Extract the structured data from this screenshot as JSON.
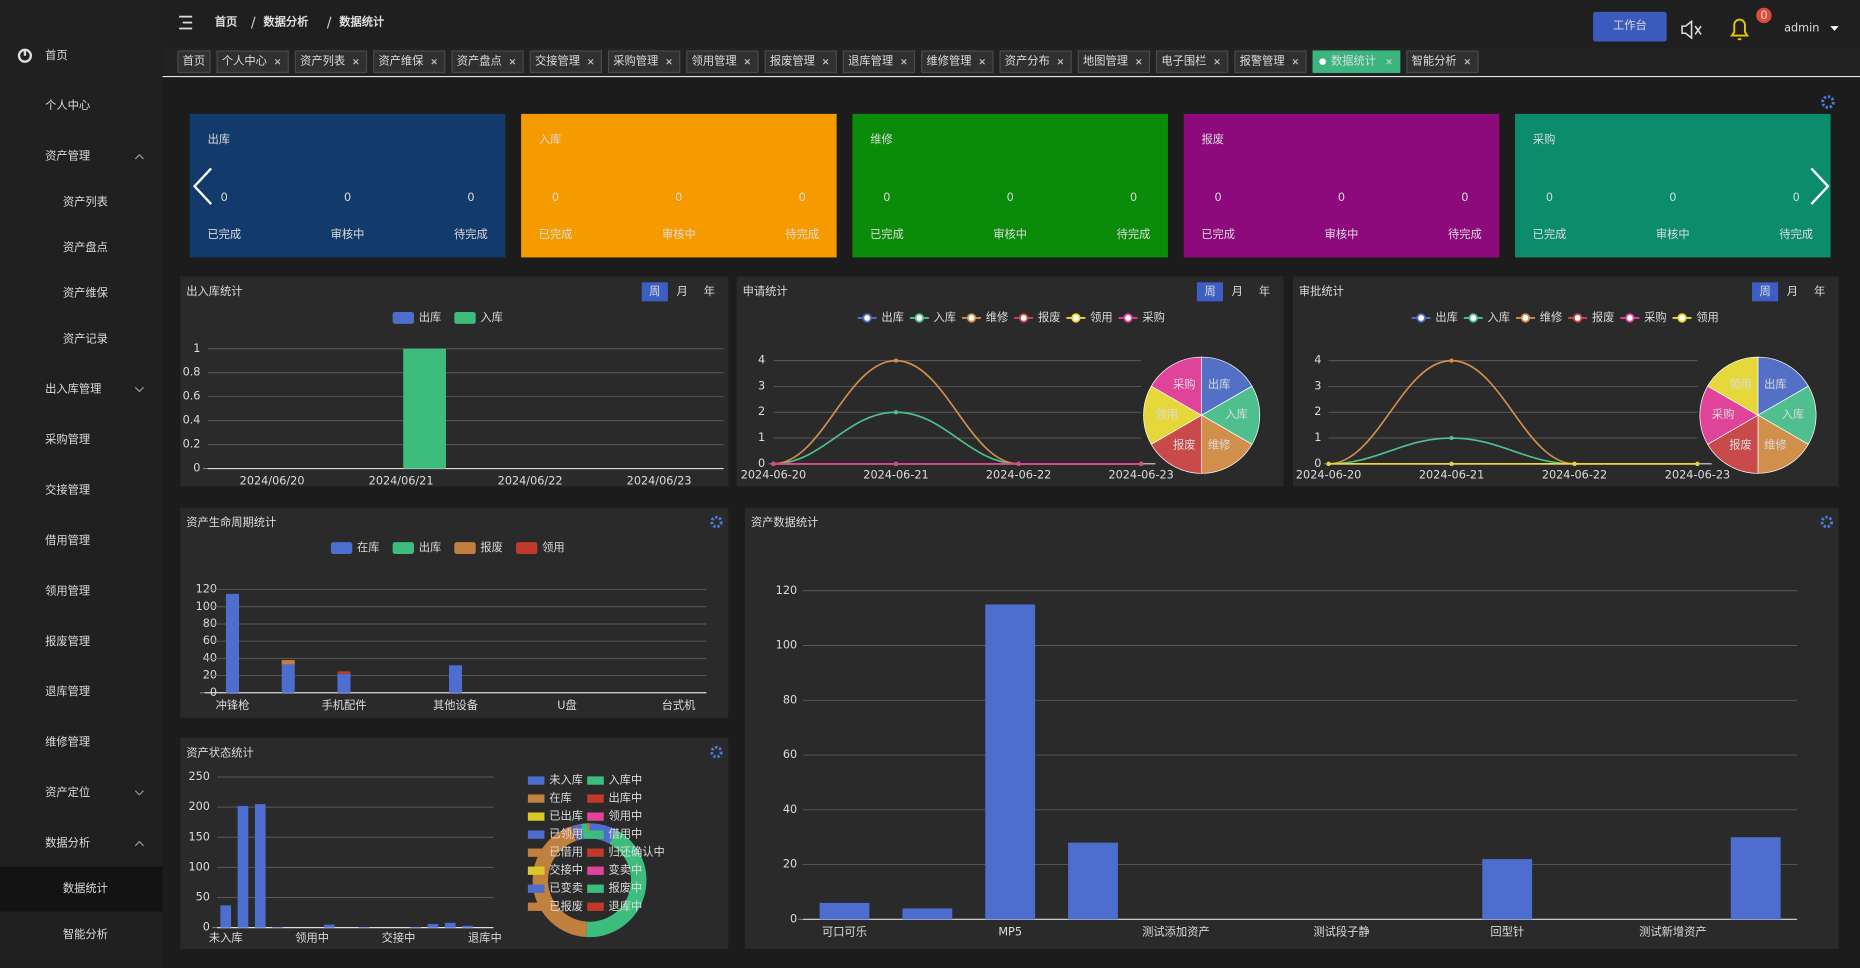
{
  "sidebar": {
    "items": [
      {
        "label": "首页"
      },
      {
        "label": "个人中心"
      },
      {
        "label": "资产管理",
        "arrow": "up",
        "children": [
          {
            "label": "资产列表"
          },
          {
            "label": "资产盘点"
          },
          {
            "label": "资产维保"
          },
          {
            "label": "资产记录"
          }
        ]
      },
      {
        "label": "出入库管理",
        "arrow": "down"
      },
      {
        "label": "采购管理"
      },
      {
        "label": "交接管理"
      },
      {
        "label": "借用管理"
      },
      {
        "label": "领用管理"
      },
      {
        "label": "报废管理"
      },
      {
        "label": "退库管理"
      },
      {
        "label": "维修管理"
      },
      {
        "label": "资产定位",
        "arrow": "down"
      },
      {
        "label": "数据分析",
        "arrow": "up",
        "children": [
          {
            "label": "数据统计",
            "active": true
          },
          {
            "label": "智能分析"
          }
        ]
      }
    ]
  },
  "header": {
    "breadcrumb": [
      "首页",
      "数据分析",
      "数据统计"
    ],
    "workbench": "工作台",
    "notifications": 0,
    "user": "admin"
  },
  "tabs": [
    {
      "label": "首页"
    },
    {
      "label": "个人中心",
      "closable": true
    },
    {
      "label": "资产列表",
      "closable": true
    },
    {
      "label": "资产维保",
      "closable": true
    },
    {
      "label": "资产盘点",
      "closable": true
    },
    {
      "label": "交接管理",
      "closable": true
    },
    {
      "label": "采购管理",
      "closable": true
    },
    {
      "label": "领用管理",
      "closable": true
    },
    {
      "label": "报废管理",
      "closable": true
    },
    {
      "label": "退库管理",
      "closable": true
    },
    {
      "label": "维修管理",
      "closable": true
    },
    {
      "label": "资产分布",
      "closable": true
    },
    {
      "label": "地图管理",
      "closable": true
    },
    {
      "label": "电子围栏",
      "closable": true
    },
    {
      "label": "报警管理",
      "closable": true
    },
    {
      "label": "数据统计",
      "closable": true,
      "active": true
    },
    {
      "label": "智能分析",
      "closable": true
    }
  ],
  "cards": {
    "labels": [
      "已完成",
      "审核中",
      "待完成"
    ],
    "items": [
      {
        "title": "出库",
        "color": "#123a6b",
        "values": [
          0,
          0,
          0
        ]
      },
      {
        "title": "入库",
        "color": "#f59b00",
        "values": [
          0,
          0,
          0
        ]
      },
      {
        "title": "维修",
        "color": "#0a8c0a",
        "values": [
          0,
          0,
          0
        ]
      },
      {
        "title": "报废",
        "color": "#8c0a7c",
        "values": [
          0,
          0,
          0
        ]
      },
      {
        "title": "采购",
        "color": "#0b8c6c",
        "values": [
          0,
          0,
          0
        ]
      }
    ]
  },
  "chart_data": [
    {
      "type": "bar",
      "title": "出入库统计",
      "periods": [
        {
          "label": "周",
          "active": true
        },
        {
          "label": "月"
        },
        {
          "label": "年"
        }
      ],
      "categories": [
        "2024/06/20",
        "2024/06/21",
        "2024/06/22",
        "2024/06/23"
      ],
      "series": [
        {
          "name": "出库",
          "color": "#4e6ecf",
          "values": [
            0,
            0,
            0,
            0
          ]
        },
        {
          "name": "入库",
          "color": "#3dbd7d",
          "values": [
            0,
            1,
            0,
            0
          ]
        }
      ],
      "ylim": [
        0,
        1
      ],
      "yticks": [
        0,
        0.2,
        0.4,
        0.6,
        0.8,
        1
      ],
      "grid": true
    },
    {
      "type": "line",
      "title": "申请统计",
      "periods": [
        {
          "label": "周",
          "active": true
        },
        {
          "label": "月"
        },
        {
          "label": "年"
        }
      ],
      "x": [
        "2024-06-20",
        "2024-06-21",
        "2024-06-22",
        "2024-06-23"
      ],
      "series": [
        {
          "name": "出库",
          "color": "#5470c6",
          "values": [
            0,
            0,
            0,
            0
          ]
        },
        {
          "name": "入库",
          "color": "#4fc08d",
          "values": [
            0,
            2,
            0,
            0
          ]
        },
        {
          "name": "维修",
          "color": "#d08f4a",
          "values": [
            0,
            4,
            0,
            0
          ]
        },
        {
          "name": "报废",
          "color": "#c94a4a",
          "values": [
            0,
            0,
            0,
            0
          ]
        },
        {
          "name": "领用",
          "color": "#e6d83a",
          "values": [
            0,
            0,
            0,
            0
          ]
        },
        {
          "name": "采购",
          "color": "#e0439a",
          "values": [
            0,
            0,
            0,
            0
          ]
        }
      ],
      "ylim": [
        0,
        4
      ],
      "yticks": [
        0,
        1,
        2,
        3,
        4
      ],
      "pie": {
        "values": [
          1,
          1,
          1,
          1,
          1,
          1
        ]
      }
    },
    {
      "type": "line",
      "title": "审批统计",
      "periods": [
        {
          "label": "周",
          "active": true
        },
        {
          "label": "月"
        },
        {
          "label": "年"
        }
      ],
      "x": [
        "2024-06-20",
        "2024-06-21",
        "2024-06-22",
        "2024-06-23"
      ],
      "series": [
        {
          "name": "出库",
          "color": "#5470c6",
          "values": [
            0,
            0,
            0,
            0
          ]
        },
        {
          "name": "入库",
          "color": "#4fc08d",
          "values": [
            0,
            1,
            0,
            0
          ]
        },
        {
          "name": "维修",
          "color": "#d08f4a",
          "values": [
            0,
            4,
            0,
            0
          ]
        },
        {
          "name": "报废",
          "color": "#c94a4a",
          "values": [
            0,
            0,
            0,
            0
          ]
        },
        {
          "name": "采购",
          "color": "#e0439a",
          "values": [
            0,
            0,
            0,
            0
          ]
        },
        {
          "name": "领用",
          "color": "#e6d83a",
          "values": [
            0,
            0,
            0,
            0
          ]
        }
      ],
      "ylim": [
        0,
        4
      ],
      "yticks": [
        0,
        1,
        2,
        3,
        4
      ],
      "pie": {
        "values": [
          1,
          1,
          1,
          1,
          1,
          1
        ]
      }
    },
    {
      "type": "stacked_bar",
      "title": "资产生命周期统计",
      "categories": [
        "冲锋枪",
        null,
        "手机配件",
        null,
        "其他设备",
        null,
        "U盘",
        null,
        "台式机"
      ],
      "series": [
        {
          "name": "在库",
          "color": "#4e6ecf",
          "values": [
            115,
            33,
            22,
            0,
            32,
            0,
            0,
            0,
            0
          ]
        },
        {
          "name": "出库",
          "color": "#3dbd7d",
          "values": [
            0,
            0,
            0,
            0,
            0,
            0,
            0,
            0,
            0
          ]
        },
        {
          "name": "报废",
          "color": "#c0813f",
          "values": [
            0,
            5,
            0,
            0,
            0,
            0,
            0,
            0,
            0
          ]
        },
        {
          "name": "领用",
          "color": "#c0392b",
          "values": [
            0,
            0,
            3,
            0,
            0,
            0,
            0,
            0,
            0
          ]
        }
      ],
      "ylim": [
        0,
        120
      ],
      "yticks": [
        0,
        20,
        40,
        60,
        80,
        100,
        120
      ],
      "grid": true
    },
    {
      "type": "bar_donut",
      "title": "资产状态统计",
      "categories": [
        "未入库",
        "入库中",
        "在库",
        "出库中",
        "已出库",
        "领用中",
        "已领用",
        "借用中",
        "已借用",
        "归还确认中",
        "交接中",
        "变卖中",
        "已变卖",
        "报废中",
        "已报废",
        "退库中"
      ],
      "values": [
        37,
        202,
        205,
        1,
        0,
        0,
        5,
        0,
        1,
        0,
        0,
        1,
        6,
        8,
        3,
        0
      ],
      "color": "#4e6ecf",
      "slice_colors": [
        "#4e6ecf",
        "#3dbd7d",
        "#c0813f",
        "#c0392b",
        "#d9c82b",
        "#e0439a",
        "#4e6ecf",
        "#3dbd7d",
        "#c0813f",
        "#c0392b",
        "#d9c82b",
        "#e0439a",
        "#4e6ecf",
        "#3dbd7d",
        "#c0813f",
        "#c0392b"
      ],
      "label_interval": 5,
      "ylim": [
        0,
        250
      ],
      "yticks": [
        0,
        50,
        100,
        150,
        200,
        250
      ],
      "grid": true
    },
    {
      "type": "bar",
      "title": "资产数据统计",
      "categories": [
        "可口可乐",
        null,
        "MP5",
        null,
        "测试添加资产",
        null,
        "测试段子静",
        null,
        "回型针",
        null,
        "测试新增资产",
        null
      ],
      "values": [
        6,
        4,
        115,
        28,
        0,
        0,
        0,
        0,
        22,
        0,
        0,
        30
      ],
      "color": "#4e6ecf",
      "ylim": [
        0,
        120
      ],
      "yticks": [
        0,
        20,
        40,
        60,
        80,
        100,
        120
      ],
      "grid": true
    }
  ]
}
